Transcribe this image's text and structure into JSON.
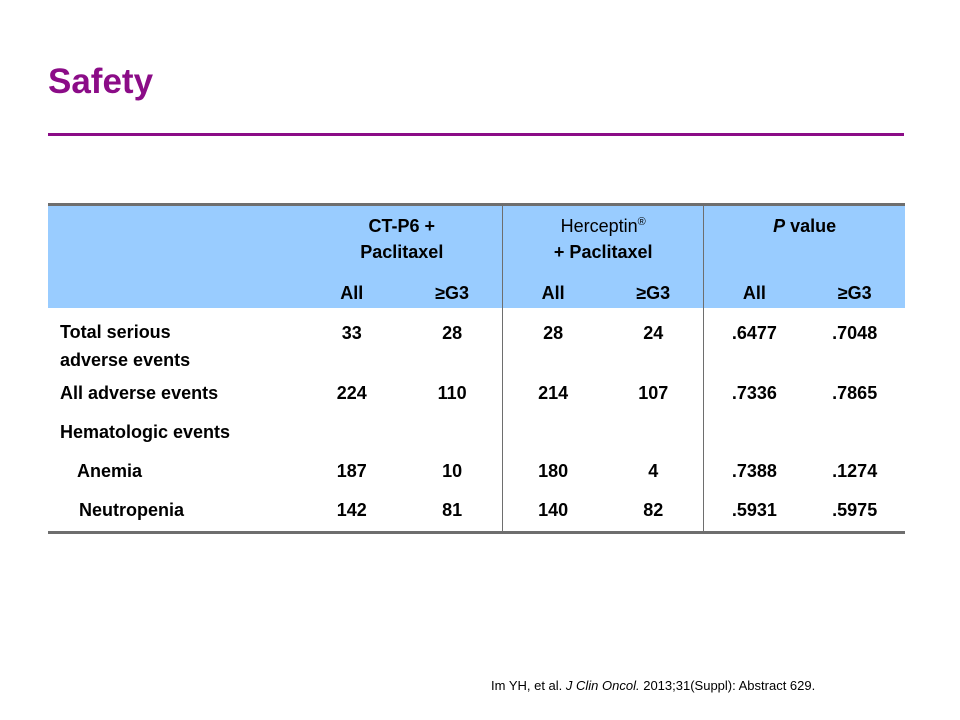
{
  "title": "Safety",
  "table": {
    "groups": {
      "ctp6_line1": "CT-P6 +",
      "ctp6_line2": "Paclitaxel",
      "herceptin_name": "Herceptin",
      "herceptin_mark": "®",
      "herceptin_line2": "+ Paclitaxel",
      "pvalue_p": "P",
      "pvalue_rest": " value"
    },
    "subheaders": [
      "All",
      "≥G3",
      "All",
      "≥G3",
      "All",
      "≥G3"
    ],
    "rows": [
      {
        "label_line1": "Total serious",
        "label_line2": "adverse events",
        "values": [
          "33",
          "28",
          "28",
          "24",
          ".6477",
          ".7048"
        ]
      },
      {
        "label": "All adverse events",
        "values": [
          "224",
          "110",
          "214",
          "107",
          ".7336",
          ".7865"
        ]
      },
      {
        "label": "Hematologic events",
        "values": [
          "",
          "",
          "",
          "",
          "",
          ""
        ]
      },
      {
        "label": "Anemia",
        "values": [
          "187",
          "10",
          "180",
          "4",
          ".7388",
          ".1274"
        ]
      },
      {
        "label": "Neutropenia",
        "values": [
          "142",
          "81",
          "140",
          "82",
          ".5931",
          ".5975"
        ]
      }
    ]
  },
  "citation": {
    "authors": "Im YH,  et al.  ",
    "journal": "J Clin Oncol.",
    "rest": " 2013;31(Suppl): Abstract 629."
  }
}
